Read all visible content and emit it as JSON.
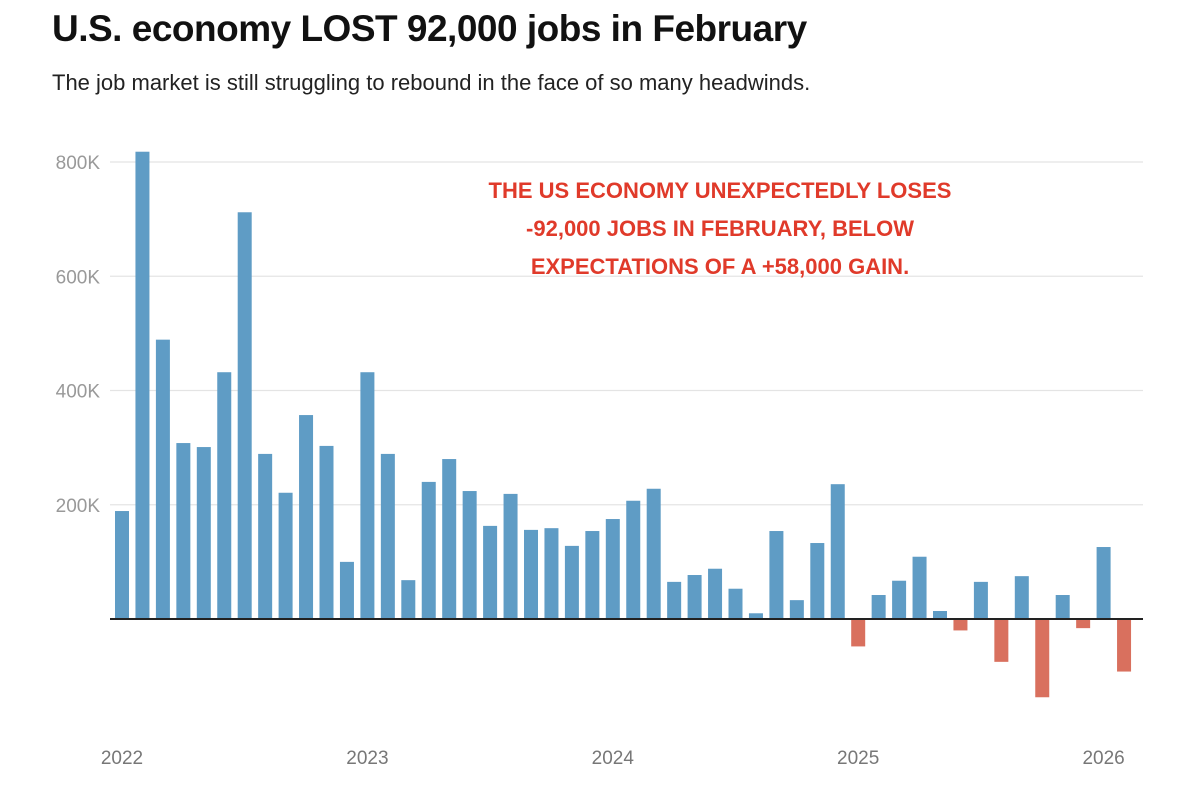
{
  "header": {
    "title": "U.S. economy LOST 92,000 jobs in February",
    "subtitle": "The job market is still struggling to rebound in the face of so many headwinds."
  },
  "annotation": {
    "text": "THE US ECONOMY UNEXPECTEDLY LOSES\n-92,000 JOBS IN FEBRUARY, BELOW\nEXPECTATIONS OF A +58,000 GAIN.",
    "color": "#e03a2a"
  },
  "colors": {
    "positive": "#5f9cc5",
    "negative": "#d9705e",
    "grid": "#e4e4e4",
    "axis": "#222222",
    "tick_text": "#999999"
  },
  "chart_data": {
    "type": "bar",
    "title": "U.S. economy LOST 92,000 jobs in February",
    "subtitle": "The job market is still struggling to rebound in the face of so many headwinds.",
    "xlabel": "",
    "ylabel": "",
    "ylim": [
      -200000,
      850000
    ],
    "yticks": [
      200000,
      400000,
      600000,
      800000
    ],
    "ytick_labels": [
      "200K",
      "400K",
      "600K",
      "800K"
    ],
    "xtick_labels": [
      "2022",
      "2023",
      "2024",
      "2025",
      "2026"
    ],
    "xtick_index": [
      0,
      12,
      24,
      36,
      48
    ],
    "grid": true,
    "legend": null,
    "annotations": [
      "THE US ECONOMY UNEXPECTEDLY LOSES -92,000 JOBS IN FEBRUARY, BELOW EXPECTATIONS OF A +58,000 GAIN."
    ],
    "categories": [
      "Jan 2022",
      "Feb 2022",
      "Mar 2022",
      "Apr 2022",
      "May 2022",
      "Jun 2022",
      "Jul 2022",
      "Aug 2022",
      "Sep 2022",
      "Oct 2022",
      "Nov 2022",
      "Dec 2022",
      "Jan 2023",
      "Feb 2023",
      "Mar 2023",
      "Apr 2023",
      "May 2023",
      "Jun 2023",
      "Jul 2023",
      "Aug 2023",
      "Sep 2023",
      "Oct 2023",
      "Nov 2023",
      "Dec 2023",
      "Jan 2024",
      "Feb 2024",
      "Mar 2024",
      "Apr 2024",
      "May 2024",
      "Jun 2024",
      "Jul 2024",
      "Aug 2024",
      "Sep 2024",
      "Oct 2024",
      "Nov 2024",
      "Dec 2024",
      "Jan 2025",
      "Feb 2025",
      "Mar 2025",
      "Apr 2025",
      "May 2025",
      "Jun 2025",
      "Jul 2025",
      "Aug 2025",
      "Sep 2025",
      "Oct 2025",
      "Nov 2025",
      "Dec 2025",
      "Jan 2026",
      "Feb 2026"
    ],
    "values": [
      189000,
      818000,
      489000,
      308000,
      301000,
      432000,
      712000,
      289000,
      221000,
      357000,
      303000,
      100000,
      432000,
      289000,
      68000,
      240000,
      280000,
      224000,
      163000,
      219000,
      156000,
      159000,
      128000,
      154000,
      175000,
      207000,
      228000,
      65000,
      77000,
      88000,
      53000,
      10000,
      154000,
      33000,
      133000,
      236000,
      -48000,
      42000,
      67000,
      109000,
      14000,
      -20000,
      65000,
      -75000,
      75000,
      -137000,
      42000,
      -16000,
      126000,
      -92000
    ]
  }
}
